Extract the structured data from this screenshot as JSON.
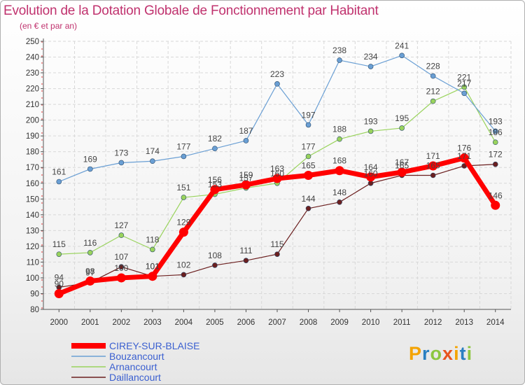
{
  "header": {
    "title": "Evolution de la Dotation Globale de Fonctionnement par Habitant",
    "subtitle": "(en € et par an)"
  },
  "logo": {
    "text": "Proxiti",
    "colors": [
      "#f4a300",
      "#2a7fc1",
      "#8cc63f",
      "#e8541e"
    ]
  },
  "chart_data": {
    "type": "line",
    "title": "Evolution de la Dotation Globale de Fonctionnement par Habitant",
    "subtitle": "(en € et par an)",
    "x": [
      "2000",
      "2001",
      "2002",
      "2003",
      "2004",
      "2005",
      "2006",
      "2007",
      "2008",
      "2009",
      "2010",
      "2011",
      "2012",
      "2013",
      "2014"
    ],
    "ylim": [
      80,
      250
    ],
    "yticks": [
      80,
      90,
      100,
      110,
      120,
      130,
      140,
      150,
      160,
      170,
      180,
      190,
      200,
      210,
      220,
      230,
      240,
      250
    ],
    "grid": true,
    "legend_position": "bottom-left",
    "series": [
      {
        "name": "Daillancourt",
        "color": "#6b1f1f",
        "width": 1.2,
        "marker": 3.5,
        "values": [
          94,
          97,
          107,
          101,
          102,
          108,
          111,
          115,
          144,
          148,
          160,
          165,
          165,
          171,
          172
        ]
      },
      {
        "name": "Arnancourt",
        "color": "#99d35c",
        "width": 1.2,
        "marker": 3.5,
        "values": [
          115,
          116,
          127,
          118,
          151,
          153,
          157,
          160,
          177,
          188,
          193,
          195,
          212,
          221,
          186
        ]
      },
      {
        "name": "Bouzancourt",
        "color": "#6a9fd4",
        "width": 1.2,
        "marker": 3.5,
        "values": [
          161,
          169,
          173,
          174,
          177,
          182,
          187,
          223,
          197,
          238,
          234,
          241,
          228,
          217,
          193
        ]
      },
      {
        "name": "CIREY-SUR-BLAISE",
        "color": "#ff0000",
        "width": 7,
        "marker": 6.5,
        "values": [
          90,
          98,
          100,
          101,
          129,
          156,
          159,
          163,
          165,
          168,
          164,
          167,
          171,
          176,
          146
        ]
      }
    ]
  }
}
